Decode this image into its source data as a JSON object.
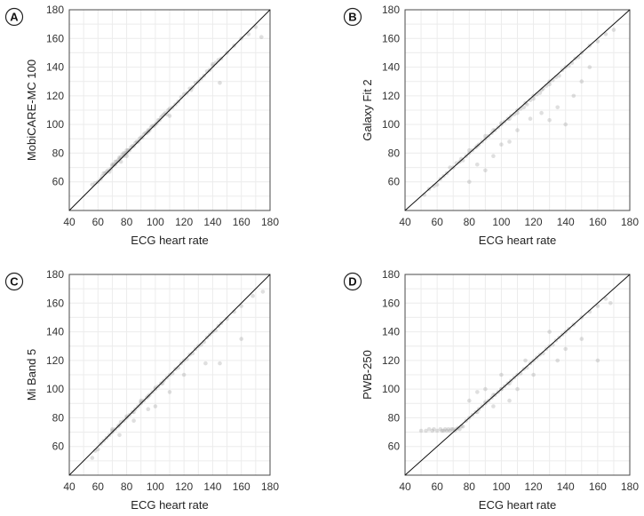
{
  "chart_data": [
    {
      "type": "scatter",
      "panel": "A",
      "xlabel": "ECG heart rate",
      "ylabel": "MobiCARE-MC 100",
      "xlim": [
        40,
        180
      ],
      "ylim": [
        40,
        180
      ],
      "xticks": [
        "40",
        "60",
        "80",
        "100",
        "120",
        "140",
        "160",
        "180"
      ],
      "yticks": [
        "60",
        "80",
        "100",
        "120",
        "140",
        "160",
        "180"
      ],
      "grid": true,
      "reference_line": "identity",
      "x": [
        56,
        58,
        60,
        62,
        63,
        64,
        65,
        66,
        67,
        68,
        69,
        70,
        70,
        71,
        72,
        72,
        73,
        74,
        75,
        75,
        76,
        77,
        78,
        78,
        79,
        80,
        80,
        81,
        82,
        83,
        84,
        85,
        86,
        87,
        88,
        89,
        90,
        91,
        92,
        93,
        94,
        95,
        96,
        97,
        98,
        99,
        100,
        101,
        102,
        103,
        104,
        105,
        106,
        107,
        108,
        109,
        110,
        112,
        114,
        116,
        118,
        120,
        122,
        124,
        126,
        128,
        130,
        132,
        134,
        136,
        138,
        140,
        142,
        144,
        146,
        150,
        155,
        160,
        165,
        170,
        174,
        76,
        95,
        110,
        125,
        140,
        80,
        145
      ],
      "y": [
        58,
        59,
        60,
        62,
        64,
        66,
        66,
        67,
        68,
        67,
        69,
        71,
        72,
        72,
        74,
        72,
        74,
        75,
        76,
        77,
        77,
        79,
        80,
        78,
        80,
        82,
        80,
        82,
        82,
        84,
        85,
        85,
        87,
        88,
        88,
        90,
        91,
        91,
        93,
        94,
        94,
        96,
        96,
        98,
        99,
        99,
        100,
        101,
        103,
        103,
        105,
        106,
        107,
        108,
        107,
        110,
        111,
        112,
        114,
        116,
        119,
        121,
        122,
        125,
        126,
        129,
        130,
        132,
        134,
        137,
        138,
        141,
        143,
        145,
        146,
        150,
        155,
        160,
        163,
        168,
        161,
        74,
        95,
        106,
        124,
        142,
        78,
        129
      ]
    },
    {
      "type": "scatter",
      "panel": "B",
      "xlabel": "ECG heart rate",
      "ylabel": "Galaxy Fit 2",
      "xlim": [
        40,
        180
      ],
      "ylim": [
        40,
        180
      ],
      "xticks": [
        "40",
        "60",
        "80",
        "100",
        "120",
        "140",
        "160",
        "180"
      ],
      "yticks": [
        "60",
        "80",
        "100",
        "120",
        "140",
        "160",
        "180"
      ],
      "grid": true,
      "reference_line": "identity",
      "x": [
        52,
        55,
        58,
        60,
        62,
        64,
        66,
        68,
        70,
        72,
        74,
        75,
        76,
        78,
        80,
        80,
        82,
        84,
        85,
        86,
        88,
        90,
        90,
        92,
        94,
        95,
        96,
        98,
        100,
        100,
        102,
        104,
        105,
        106,
        108,
        110,
        110,
        112,
        114,
        115,
        116,
        118,
        120,
        120,
        122,
        124,
        125,
        126,
        128,
        130,
        130,
        132,
        134,
        136,
        138,
        140,
        142,
        144,
        146,
        148,
        150,
        155,
        160,
        165,
        170,
        85,
        95,
        100,
        105,
        110,
        118,
        125,
        130,
        135,
        140,
        145,
        150,
        155,
        80,
        90
      ],
      "y": [
        51,
        55,
        57,
        58,
        62,
        64,
        66,
        70,
        70,
        73,
        74,
        76,
        75,
        78,
        80,
        82,
        82,
        84,
        85,
        86,
        88,
        90,
        92,
        92,
        94,
        96,
        96,
        98,
        100,
        101,
        102,
        104,
        104,
        106,
        107,
        110,
        108,
        111,
        112,
        115,
        114,
        117,
        120,
        118,
        121,
        122,
        124,
        125,
        127,
        130,
        128,
        131,
        133,
        134,
        138,
        140,
        141,
        143,
        146,
        147,
        150,
        155,
        158,
        163,
        166,
        72,
        78,
        86,
        88,
        96,
        104,
        108,
        103,
        112,
        100,
        120,
        130,
        140,
        60,
        68
      ]
    },
    {
      "type": "scatter",
      "panel": "C",
      "xlabel": "ECG heart rate",
      "ylabel": "Mi Band 5",
      "xlim": [
        40,
        180
      ],
      "ylim": [
        40,
        180
      ],
      "xticks": [
        "40",
        "60",
        "80",
        "100",
        "120",
        "140",
        "160",
        "180"
      ],
      "yticks": [
        "60",
        "80",
        "100",
        "120",
        "140",
        "160",
        "180"
      ],
      "grid": true,
      "reference_line": "identity",
      "x": [
        56,
        58,
        60,
        62,
        64,
        66,
        68,
        70,
        70,
        72,
        74,
        75,
        76,
        78,
        80,
        80,
        82,
        84,
        85,
        86,
        88,
        90,
        90,
        92,
        94,
        95,
        96,
        98,
        100,
        100,
        102,
        104,
        105,
        106,
        108,
        110,
        112,
        114,
        116,
        118,
        120,
        122,
        124,
        126,
        128,
        130,
        132,
        134,
        136,
        138,
        140,
        142,
        144,
        146,
        150,
        155,
        160,
        168,
        175,
        75,
        85,
        95,
        110,
        120,
        135,
        145,
        160,
        70,
        90,
        100
      ],
      "y": [
        52,
        57,
        58,
        62,
        64,
        66,
        68,
        70,
        71,
        72,
        74,
        75,
        77,
        78,
        80,
        81,
        82,
        84,
        84,
        86,
        88,
        90,
        91,
        92,
        94,
        95,
        96,
        98,
        100,
        101,
        102,
        104,
        104,
        106,
        108,
        110,
        111,
        114,
        115,
        118,
        120,
        121,
        124,
        125,
        128,
        130,
        131,
        133,
        136,
        138,
        140,
        141,
        144,
        146,
        149,
        154,
        158,
        165,
        168,
        68,
        78,
        86,
        98,
        110,
        118,
        118,
        135,
        72,
        92,
        88
      ]
    },
    {
      "type": "scatter",
      "panel": "D",
      "xlabel": "ECG heart rate",
      "ylabel": "PWB-250",
      "xlim": [
        40,
        180
      ],
      "ylim": [
        40,
        180
      ],
      "xticks": [
        "40",
        "60",
        "80",
        "100",
        "120",
        "140",
        "160",
        "180"
      ],
      "yticks": [
        "60",
        "80",
        "100",
        "120",
        "140",
        "160",
        "180"
      ],
      "grid": true,
      "reference_line": "identity",
      "x": [
        50,
        53,
        55,
        57,
        58,
        60,
        62,
        63,
        64,
        65,
        66,
        67,
        68,
        69,
        70,
        71,
        72,
        73,
        74,
        75,
        76,
        78,
        80,
        82,
        84,
        85,
        86,
        88,
        90,
        90,
        92,
        94,
        95,
        96,
        98,
        100,
        100,
        102,
        104,
        105,
        106,
        108,
        110,
        112,
        114,
        116,
        118,
        120,
        122,
        124,
        126,
        128,
        130,
        132,
        134,
        136,
        138,
        140,
        142,
        145,
        150,
        155,
        160,
        165,
        168,
        80,
        85,
        90,
        95,
        100,
        105,
        110,
        115,
        120,
        130,
        135,
        140,
        150,
        160
      ],
      "y": [
        71,
        71,
        72,
        71,
        72,
        71,
        72,
        71,
        71,
        72,
        71,
        72,
        71,
        72,
        72,
        71,
        72,
        73,
        72,
        74,
        74,
        78,
        80,
        82,
        84,
        84,
        86,
        88,
        90,
        91,
        92,
        94,
        96,
        96,
        98,
        100,
        100,
        102,
        104,
        104,
        106,
        108,
        110,
        111,
        114,
        115,
        118,
        120,
        122,
        124,
        125,
        128,
        130,
        131,
        134,
        136,
        138,
        140,
        142,
        145,
        150,
        154,
        158,
        163,
        160,
        92,
        98,
        100,
        88,
        110,
        92,
        100,
        120,
        110,
        140,
        120,
        128,
        135,
        120
      ]
    }
  ]
}
